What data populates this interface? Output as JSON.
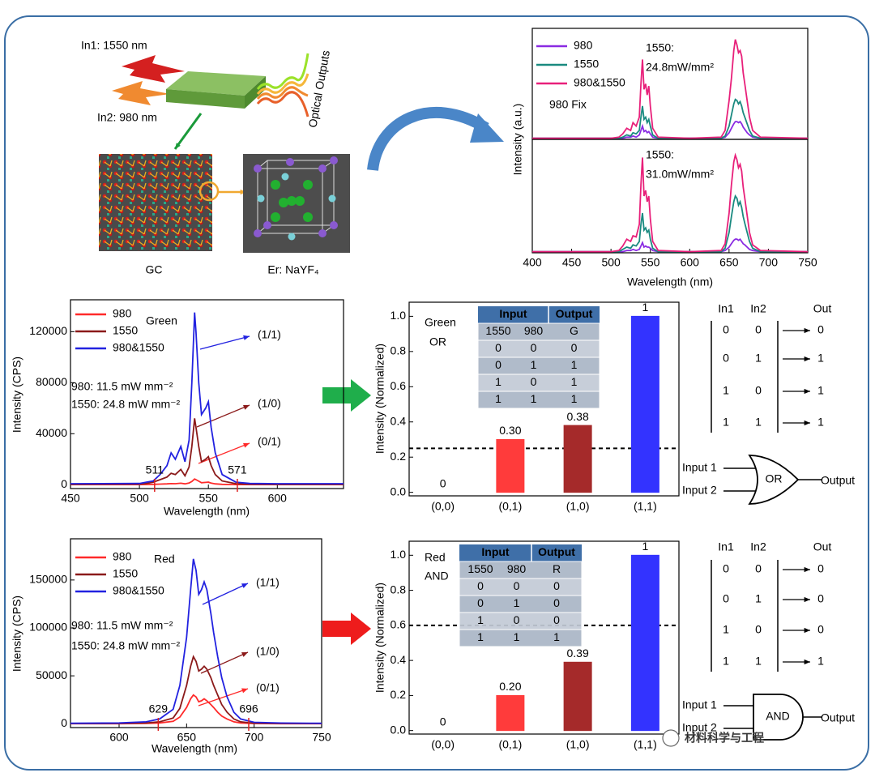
{
  "schematic": {
    "in1": "In1: 1550 nm",
    "in2": "In2: 980 nm",
    "outputs": "Optical Outputs",
    "gc": "GC",
    "crystal": "Er: NaYF₄"
  },
  "chart_data": [
    {
      "type": "line",
      "ylabel": "Intensity (a.u.)",
      "xlim": [
        400,
        750
      ],
      "ylim": [
        0,
        1
      ],
      "legend": true,
      "annotations": [
        "1550:",
        "24.8mW/mm²",
        "980 Fix"
      ],
      "x": [
        400,
        500,
        510,
        515,
        520,
        525,
        528,
        532,
        536,
        538,
        540,
        542,
        544,
        546,
        548,
        550,
        553,
        560,
        600,
        640,
        645,
        650,
        653,
        656,
        658,
        660,
        662,
        664,
        666,
        668,
        670,
        673,
        676,
        680,
        690,
        750
      ],
      "series": [
        {
          "name": "980",
          "color": "#8a2be2",
          "values": [
            0.01,
            0.01,
            0.01,
            0.01,
            0.02,
            0.02,
            0.03,
            0.02,
            0.04,
            0.08,
            0.12,
            0.07,
            0.08,
            0.06,
            0.07,
            0.05,
            0.02,
            0.01,
            0.01,
            0.01,
            0.02,
            0.06,
            0.1,
            0.14,
            0.16,
            0.16,
            0.15,
            0.16,
            0.14,
            0.11,
            0.09,
            0.06,
            0.04,
            0.02,
            0.01,
            0.01
          ]
        },
        {
          "name": "1550",
          "color": "#1a8a80",
          "values": [
            0.01,
            0.01,
            0.01,
            0.02,
            0.04,
            0.03,
            0.06,
            0.05,
            0.08,
            0.2,
            0.3,
            0.18,
            0.2,
            0.15,
            0.18,
            0.12,
            0.04,
            0.01,
            0.01,
            0.01,
            0.03,
            0.12,
            0.22,
            0.32,
            0.36,
            0.35,
            0.32,
            0.34,
            0.3,
            0.24,
            0.2,
            0.14,
            0.08,
            0.03,
            0.01,
            0.01
          ]
        },
        {
          "name": "980&1550",
          "color": "#e8207a",
          "values": [
            0.01,
            0.01,
            0.02,
            0.05,
            0.1,
            0.08,
            0.15,
            0.12,
            0.2,
            0.5,
            0.72,
            0.45,
            0.5,
            0.4,
            0.48,
            0.3,
            0.1,
            0.02,
            0.01,
            0.02,
            0.08,
            0.35,
            0.55,
            0.8,
            0.9,
            0.85,
            0.78,
            0.8,
            0.75,
            0.6,
            0.5,
            0.35,
            0.2,
            0.08,
            0.02,
            0.01
          ]
        }
      ]
    },
    {
      "type": "line",
      "xlabel": "Wavelength (nm)",
      "xlim": [
        400,
        750
      ],
      "xticks": [
        400,
        450,
        500,
        550,
        600,
        650,
        700,
        750
      ],
      "ylim": [
        0,
        1
      ],
      "annotations": [
        "1550:",
        "31.0mW/mm²"
      ],
      "x": [
        400,
        500,
        510,
        515,
        520,
        525,
        528,
        532,
        536,
        538,
        540,
        542,
        544,
        546,
        548,
        550,
        553,
        560,
        600,
        640,
        645,
        650,
        653,
        656,
        658,
        660,
        662,
        664,
        666,
        668,
        670,
        673,
        676,
        680,
        690,
        750
      ],
      "series": [
        {
          "name": "980",
          "color": "#8a2be2",
          "values": [
            0.01,
            0.01,
            0.01,
            0.01,
            0.02,
            0.02,
            0.03,
            0.02,
            0.03,
            0.06,
            0.09,
            0.05,
            0.06,
            0.05,
            0.05,
            0.04,
            0.02,
            0.01,
            0.01,
            0.01,
            0.02,
            0.05,
            0.08,
            0.11,
            0.12,
            0.12,
            0.11,
            0.12,
            0.1,
            0.08,
            0.07,
            0.05,
            0.03,
            0.02,
            0.01,
            0.01
          ]
        },
        {
          "name": "1550",
          "color": "#1a8a80",
          "values": [
            0.01,
            0.01,
            0.01,
            0.03,
            0.05,
            0.04,
            0.07,
            0.06,
            0.1,
            0.25,
            0.35,
            0.2,
            0.22,
            0.18,
            0.2,
            0.12,
            0.04,
            0.01,
            0.01,
            0.01,
            0.04,
            0.18,
            0.32,
            0.45,
            0.5,
            0.48,
            0.42,
            0.45,
            0.4,
            0.32,
            0.26,
            0.18,
            0.1,
            0.04,
            0.01,
            0.01
          ]
        },
        {
          "name": "980&1550",
          "color": "#e8207a",
          "values": [
            0.01,
            0.01,
            0.02,
            0.06,
            0.12,
            0.1,
            0.15,
            0.14,
            0.25,
            0.6,
            0.84,
            0.5,
            0.55,
            0.45,
            0.5,
            0.3,
            0.1,
            0.02,
            0.01,
            0.02,
            0.08,
            0.35,
            0.6,
            0.8,
            0.86,
            0.82,
            0.75,
            0.78,
            0.72,
            0.58,
            0.48,
            0.33,
            0.18,
            0.07,
            0.02,
            0.01
          ]
        }
      ]
    },
    {
      "type": "line",
      "xlabel": "Wavelength (nm)",
      "ylabel": "Intensity (CPS)",
      "xlim": [
        450,
        648
      ],
      "xticks": [
        450,
        500,
        550,
        600
      ],
      "ylim": [
        -3000,
        145000
      ],
      "yticks": [
        0,
        40000,
        80000,
        120000
      ],
      "legend": true,
      "annotations": [
        "Green",
        "980: 11.5 mW mm⁻²",
        "1550: 24.8 mW mm⁻²",
        "(1/1)",
        "(1/0)",
        "(0/1)"
      ],
      "markers": [
        511,
        571
      ],
      "marker_color": "#e02020",
      "x": [
        450,
        500,
        505,
        510,
        515,
        520,
        523,
        526,
        530,
        533,
        536,
        538,
        540,
        541,
        543,
        545,
        548,
        550,
        552,
        555,
        560,
        570,
        580,
        600,
        648
      ],
      "series": [
        {
          "name": "980",
          "color": "#ff2a2a",
          "values": [
            100,
            100,
            200,
            300,
            500,
            700,
            900,
            800,
            1200,
            700,
            1400,
            2500,
            4500,
            4000,
            2800,
            1600,
            1800,
            2000,
            1300,
            700,
            300,
            100,
            100,
            100,
            100
          ]
        },
        {
          "name": "1550",
          "color": "#8b1a1a",
          "values": [
            300,
            500,
            1000,
            2000,
            4000,
            6000,
            9000,
            8000,
            12000,
            7000,
            14000,
            30000,
            52000,
            45000,
            30000,
            18000,
            20000,
            22000,
            15000,
            8000,
            3000,
            800,
            400,
            300,
            300
          ]
        },
        {
          "name": "980&1550",
          "color": "#2222e0",
          "values": [
            800,
            1000,
            2000,
            3000,
            8000,
            15000,
            25000,
            20000,
            30000,
            18000,
            35000,
            80000,
            135000,
            120000,
            80000,
            55000,
            60000,
            65000,
            45000,
            25000,
            8000,
            2000,
            1000,
            800,
            800
          ]
        }
      ]
    },
    {
      "type": "line",
      "xlabel": "Wavelength (nm)",
      "ylabel": "Intensity (CPS)",
      "xlim": [
        564,
        750
      ],
      "xticks": [
        600,
        650,
        700,
        750
      ],
      "ylim": [
        -4000,
        193000
      ],
      "yticks": [
        0,
        50000,
        100000,
        150000
      ],
      "legend": true,
      "annotations": [
        "Red",
        "980: 11.5 mW mm⁻²",
        "1550: 24.8 mW mm⁻²",
        "(1/1)",
        "(1/0)",
        "(0/1)"
      ],
      "markers": [
        629,
        696
      ],
      "marker_color": "#e02020",
      "x": [
        564,
        600,
        620,
        630,
        640,
        645,
        650,
        653,
        655,
        657,
        659,
        661,
        663,
        665,
        668,
        670,
        673,
        676,
        680,
        685,
        690,
        700,
        720,
        750
      ],
      "series": [
        {
          "name": "980",
          "color": "#ff2a2a",
          "values": [
            100,
            100,
            300,
            800,
            2500,
            7000,
            17000,
            26000,
            30000,
            28000,
            23000,
            24000,
            26000,
            24000,
            20000,
            17000,
            12000,
            8000,
            5000,
            2000,
            800,
            200,
            100,
            100
          ]
        },
        {
          "name": "1550",
          "color": "#8b1a1a",
          "values": [
            200,
            300,
            800,
            2000,
            6000,
            16000,
            40000,
            60000,
            70000,
            65000,
            55000,
            57000,
            60000,
            57000,
            48000,
            40000,
            30000,
            20000,
            12000,
            5000,
            2000,
            600,
            300,
            200
          ]
        },
        {
          "name": "980&1550",
          "color": "#2222e0",
          "values": [
            500,
            800,
            2000,
            5000,
            15000,
            40000,
            90000,
            140000,
            172000,
            160000,
            135000,
            140000,
            148000,
            140000,
            115000,
            95000,
            70000,
            48000,
            28000,
            12000,
            5000,
            1500,
            700,
            500
          ]
        }
      ]
    },
    {
      "type": "bar",
      "ylabel": "Intensity (Normalized)",
      "ylim": [
        -0.02,
        1.08
      ],
      "yticks": [
        {
          "value": 0,
          "label": "0.0"
        },
        0.2,
        0.4,
        0.6,
        0.8,
        {
          "value": 1,
          "label": "1.0"
        }
      ],
      "categories": [
        "(0,0)",
        "(0,1)",
        "(1,0)",
        "(1,1)"
      ],
      "values": [
        0,
        0.3,
        0.38,
        1
      ],
      "value_labels": [
        "0",
        "0.30",
        "0.38",
        "1"
      ],
      "colors": [
        "#19c3d6",
        "#ff3b3b",
        "#a52a2a",
        "#3333ff"
      ],
      "threshold": 0.25,
      "annotations": [
        "Green",
        "OR"
      ],
      "table": {
        "header": [
          "Input",
          "Output"
        ],
        "rows": [
          [
            "1550",
            "980",
            "G"
          ],
          [
            "0",
            "0",
            "0"
          ],
          [
            "0",
            "1",
            "1"
          ],
          [
            "1",
            "0",
            "1"
          ],
          [
            "1",
            "1",
            "1"
          ]
        ]
      }
    },
    {
      "type": "bar",
      "ylabel": "Intensity (Normalized)",
      "ylim": [
        -0.02,
        1.08
      ],
      "yticks": [
        {
          "value": 0,
          "label": "0.0"
        },
        0.2,
        0.4,
        0.6,
        0.8,
        {
          "value": 1,
          "label": "1.0"
        }
      ],
      "categories": [
        "(0,0)",
        "(0,1)",
        "(1,0)",
        "(1,1)"
      ],
      "values": [
        0,
        0.2,
        0.39,
        1
      ],
      "value_labels": [
        "0",
        "0.20",
        "0.39",
        "1"
      ],
      "colors": [
        "#19c3d6",
        "#ff3b3b",
        "#a52a2a",
        "#3333ff"
      ],
      "threshold": 0.6,
      "annotations": [
        "Red",
        "AND"
      ],
      "table": {
        "header": [
          "Input",
          "Output"
        ],
        "rows": [
          [
            "1550",
            "980",
            "R"
          ],
          [
            "0",
            "0",
            "0"
          ],
          [
            "0",
            "1",
            "0"
          ],
          [
            "1",
            "0",
            "0"
          ],
          [
            "1",
            "1",
            "1"
          ]
        ]
      }
    }
  ],
  "logic": [
    {
      "headers": [
        "In1",
        "In2",
        "Out"
      ],
      "in_color": "#d6247f",
      "out_color": "#1fae4b",
      "rows": [
        [
          "0",
          "0",
          "0"
        ],
        [
          "0",
          "1",
          "1"
        ],
        [
          "1",
          "0",
          "1"
        ],
        [
          "1",
          "1",
          "1"
        ]
      ],
      "gate": {
        "inputs": [
          "Input 1",
          "Input 2"
        ],
        "label": "OR",
        "output": "Output"
      }
    },
    {
      "headers": [
        "In1",
        "In2",
        "Out"
      ],
      "in_color": "#d6247f",
      "out_color": "#e02020",
      "rows": [
        [
          "0",
          "0",
          "0"
        ],
        [
          "0",
          "1",
          "0"
        ],
        [
          "1",
          "0",
          "0"
        ],
        [
          "1",
          "1",
          "1"
        ]
      ],
      "gate": {
        "inputs": [
          "Input 1",
          "Input 2"
        ],
        "label": "AND",
        "output": "Output"
      }
    }
  ],
  "watermark": "材料科学与工程"
}
